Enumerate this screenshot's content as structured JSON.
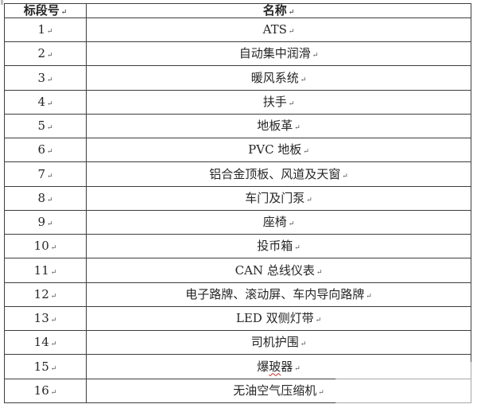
{
  "page": {
    "background": "#ffffff",
    "border_color": "#3d3d3d",
    "text_color": "#262626",
    "spellcheck_color": "#c42a2a"
  },
  "table": {
    "paragraph_mark": "↵",
    "columns": [
      {
        "label": "标段号"
      },
      {
        "label": "名称"
      }
    ],
    "rows": [
      {
        "no": "1",
        "name": "ATS"
      },
      {
        "no": "2",
        "name": "自动集中润滑"
      },
      {
        "no": "3",
        "name": "暖风系统"
      },
      {
        "no": "4",
        "name": "扶手"
      },
      {
        "no": "5",
        "name": "地板革"
      },
      {
        "no": "6",
        "name": "PVC 地板"
      },
      {
        "no": "7",
        "name": "铝合金顶板、风道及天窗"
      },
      {
        "no": "8",
        "name": "车门及门泵"
      },
      {
        "no": "9",
        "name": "座椅"
      },
      {
        "no": "10",
        "name": "投币箱"
      },
      {
        "no": "11",
        "name": "CAN 总线仪表"
      },
      {
        "no": "12",
        "name": "电子路牌、滚动屏、车内导向路牌"
      },
      {
        "no": "13",
        "name": "LED 双侧灯带"
      },
      {
        "no": "14",
        "name": "司机护围"
      },
      {
        "no": "15",
        "name": "爆玻器",
        "name_pre": "爆",
        "name_wavy": "玻",
        "name_post": "器"
      },
      {
        "no": "16",
        "name": "无油空气压缩机"
      }
    ]
  }
}
